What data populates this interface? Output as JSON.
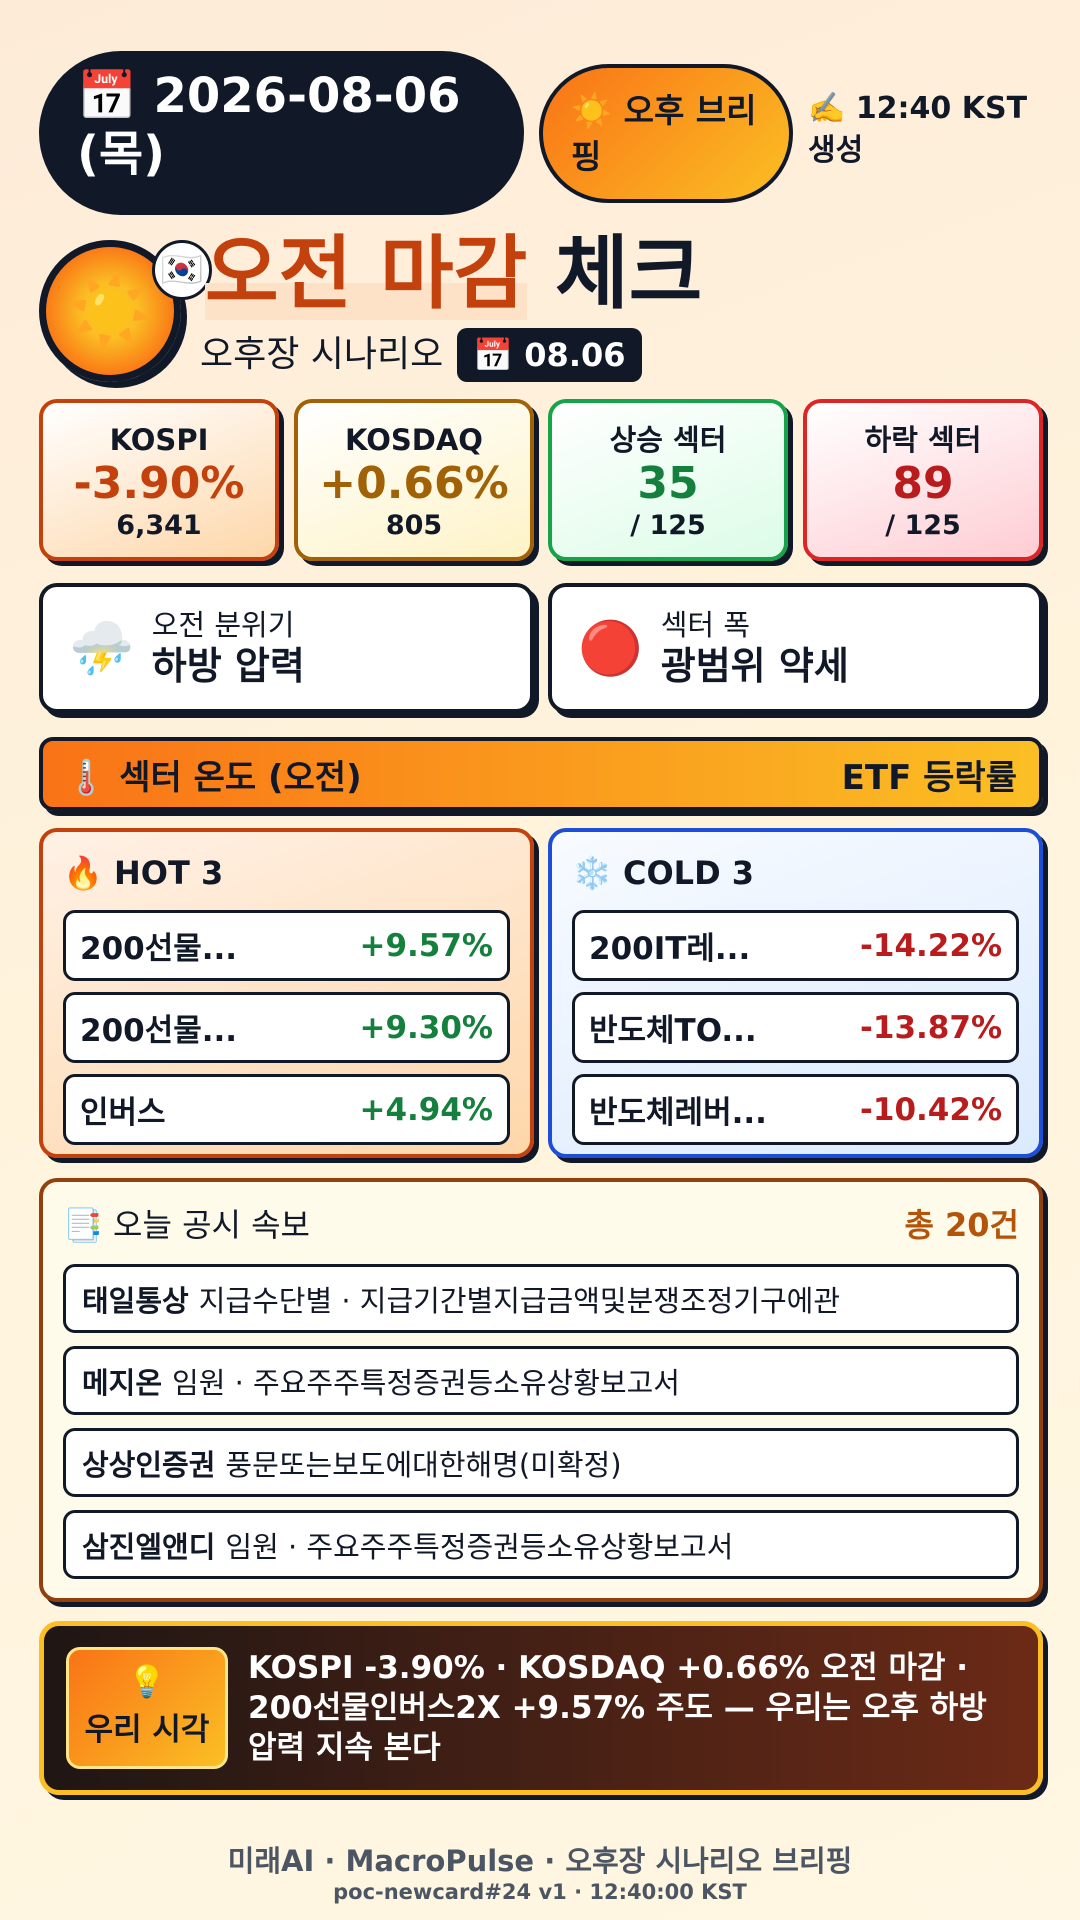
{
  "header": {
    "date_icon": "📅",
    "date": "2026-08-06 (목)",
    "badge": "☀️ 오후 브리핑",
    "generated_icon": "✍️",
    "generated": "12:40 KST 생성"
  },
  "hero": {
    "icon": "☀️",
    "flag": "🇰🇷",
    "title_highlight": "오전 마감",
    "title_rest": "체크",
    "subtitle": "오후장 시나리오",
    "date_badge": "📅 08.06"
  },
  "stats": [
    {
      "label": "KOSPI",
      "value": "-3.90%",
      "sub": "6,341"
    },
    {
      "label": "KOSDAQ",
      "value": "+0.66%",
      "sub": "805"
    },
    {
      "label": "상승 섹터",
      "value": "35",
      "sub": "/ 125"
    },
    {
      "label": "하락 섹터",
      "value": "89",
      "sub": "/ 125"
    }
  ],
  "mood": [
    {
      "icon": "⛈️",
      "label": "오전 분위기",
      "value": "하방 압력"
    },
    {
      "icon": "🔴",
      "label": "섹터 폭",
      "value": "광범위 약세"
    }
  ],
  "sector": {
    "icon": "🌡️",
    "title": "섹터 온도 (오전)",
    "right": "ETF 등락률"
  },
  "hot": {
    "icon": "🔥",
    "title": "HOT 3",
    "rows": [
      {
        "name": "200선물...",
        "change": "+9.57%"
      },
      {
        "name": "200선물...",
        "change": "+9.30%"
      },
      {
        "name": "인버스",
        "change": "+4.94%"
      }
    ]
  },
  "cold": {
    "icon": "❄️",
    "title": "COLD 3",
    "rows": [
      {
        "name": "200IT레...",
        "change": "-14.22%"
      },
      {
        "name": "반도체TO...",
        "change": "-13.87%"
      },
      {
        "name": "반도체레버...",
        "change": "-10.42%"
      }
    ]
  },
  "disclosures": {
    "icon": "📑",
    "title": "오늘 공시 속보",
    "count": "총 20건",
    "items": [
      {
        "company": "태일통상",
        "detail": "지급수단별 · 지급기간별지급금액및분쟁조정기구에관"
      },
      {
        "company": "메지온",
        "detail": "임원 · 주요주주특정증권등소유상황보고서"
      },
      {
        "company": "상상인증권",
        "detail": "풍문또는보도에대한해명(미확정)"
      },
      {
        "company": "삼진엘앤디",
        "detail": "임원 · 주요주주특정증권등소유상황보고서"
      }
    ]
  },
  "view": {
    "icon": "💡",
    "label": "우리 시각",
    "text": "KOSPI -3.90% · KOSDAQ +0.66% 오전 마감 · 200선물인버스2X +9.57% 주도 — 우리는 오후 하방 압력 지속 본다"
  },
  "footer": {
    "line1": "미래AI · MacroPulse · 오후장 시나리오 브리핑",
    "line2": "poc-newcard#24 v1 · 12:40:00 KST"
  }
}
